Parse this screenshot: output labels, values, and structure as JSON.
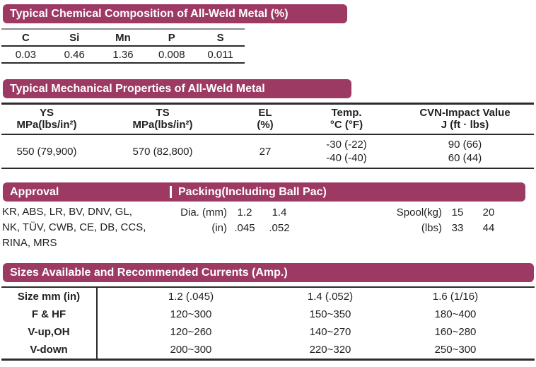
{
  "accent_color": "#9D3A64",
  "sections": {
    "chemical": {
      "title": "Typical Chemical Composition of All-Weld Metal (%)",
      "columns": [
        "C",
        "Si",
        "Mn",
        "P",
        "S"
      ],
      "values": [
        "0.03",
        "0.46",
        "1.36",
        "0.008",
        "0.011"
      ]
    },
    "mechanical": {
      "title": "Typical Mechanical Properties of All-Weld Metal",
      "columns": [
        {
          "line1": "YS",
          "line2": "MPa(lbs/in²)"
        },
        {
          "line1": "TS",
          "line2": "MPa(lbs/in²)"
        },
        {
          "line1": "EL",
          "line2": "(%)"
        },
        {
          "line1": "Temp.",
          "line2": "°C (°F)"
        },
        {
          "line1": "CVN-Impact Value",
          "line2": "J (ft · lbs)"
        }
      ],
      "row": {
        "ys": "550 (79,900)",
        "ts": "570 (82,800)",
        "el": "27",
        "temp": [
          "-30 (-22)",
          "-40 (-40)"
        ],
        "cvn": [
          "90 (66)",
          "60 (44)"
        ]
      }
    },
    "approval": {
      "title": "Approval",
      "lines": [
        "KR, ABS, LR, BV, DNV, GL,",
        "NK, TÜV, CWB, CE, DB, CCS,",
        "RINA, MRS"
      ]
    },
    "packing": {
      "title": "Packing(Including Ball Pac)",
      "dia": {
        "label_mm": "Dia. (mm)",
        "label_in": "(in)",
        "mm": [
          "1.2",
          "1.4"
        ],
        "in": [
          ".045",
          ".052"
        ]
      },
      "spool": {
        "label_kg": "Spool(kg)",
        "label_lbs": "(lbs)",
        "kg": [
          "15",
          "20"
        ],
        "lbs": [
          "33",
          "44"
        ]
      }
    },
    "sizes": {
      "title": "Sizes Available and Recommended Currents (Amp.)",
      "header_row": {
        "label": "Size mm (in)",
        "values": [
          "1.2 (.045)",
          "1.4 (.052)",
          "1.6 (1/16)"
        ]
      },
      "rows": [
        {
          "label": "F & HF",
          "values": [
            "120~300",
            "150~350",
            "180~400"
          ]
        },
        {
          "label": "V-up,OH",
          "values": [
            "120~260",
            "140~270",
            "160~280"
          ]
        },
        {
          "label": "V-down",
          "values": [
            "200~300",
            "220~320",
            "250~300"
          ]
        }
      ]
    }
  }
}
